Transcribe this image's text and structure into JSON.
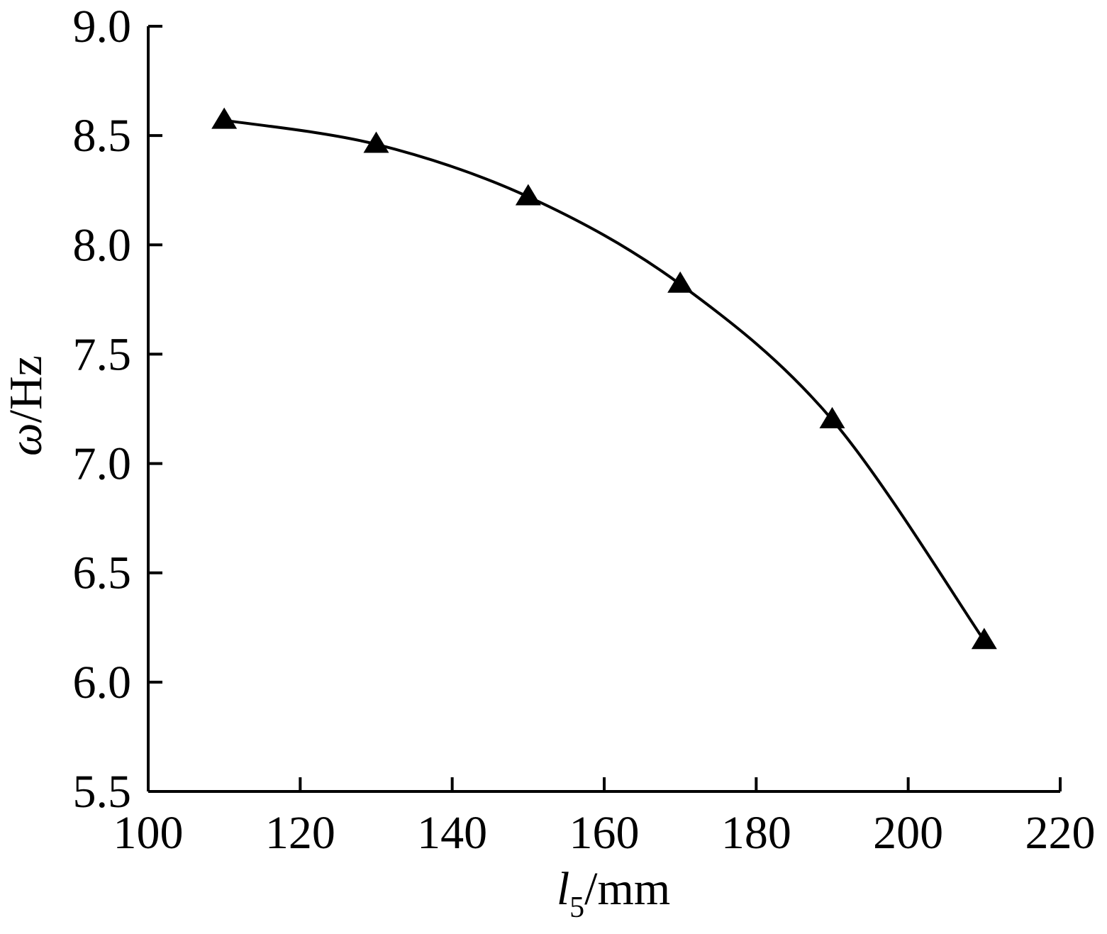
{
  "chart_data": {
    "type": "line",
    "title": "",
    "xlabel": {
      "main": "l",
      "sub": "5",
      "unit": "/mm"
    },
    "ylabel": {
      "main": "ω",
      "unit": "/Hz"
    },
    "xlim": [
      100,
      220
    ],
    "ylim": [
      5.5,
      9.0
    ],
    "xticks": [
      "100",
      "120",
      "140",
      "160",
      "180",
      "200",
      "220"
    ],
    "yticks": [
      "5.5",
      "6.0",
      "6.5",
      "7.0",
      "7.5",
      "8.0",
      "8.5",
      "9.0"
    ],
    "grid": false,
    "legend": "none",
    "series": [
      {
        "marker": "triangle",
        "color": "#000000",
        "x": [
          110,
          130,
          150,
          170,
          190,
          210
        ],
        "y": [
          8.57,
          8.46,
          8.22,
          7.82,
          7.2,
          6.19
        ]
      }
    ]
  }
}
